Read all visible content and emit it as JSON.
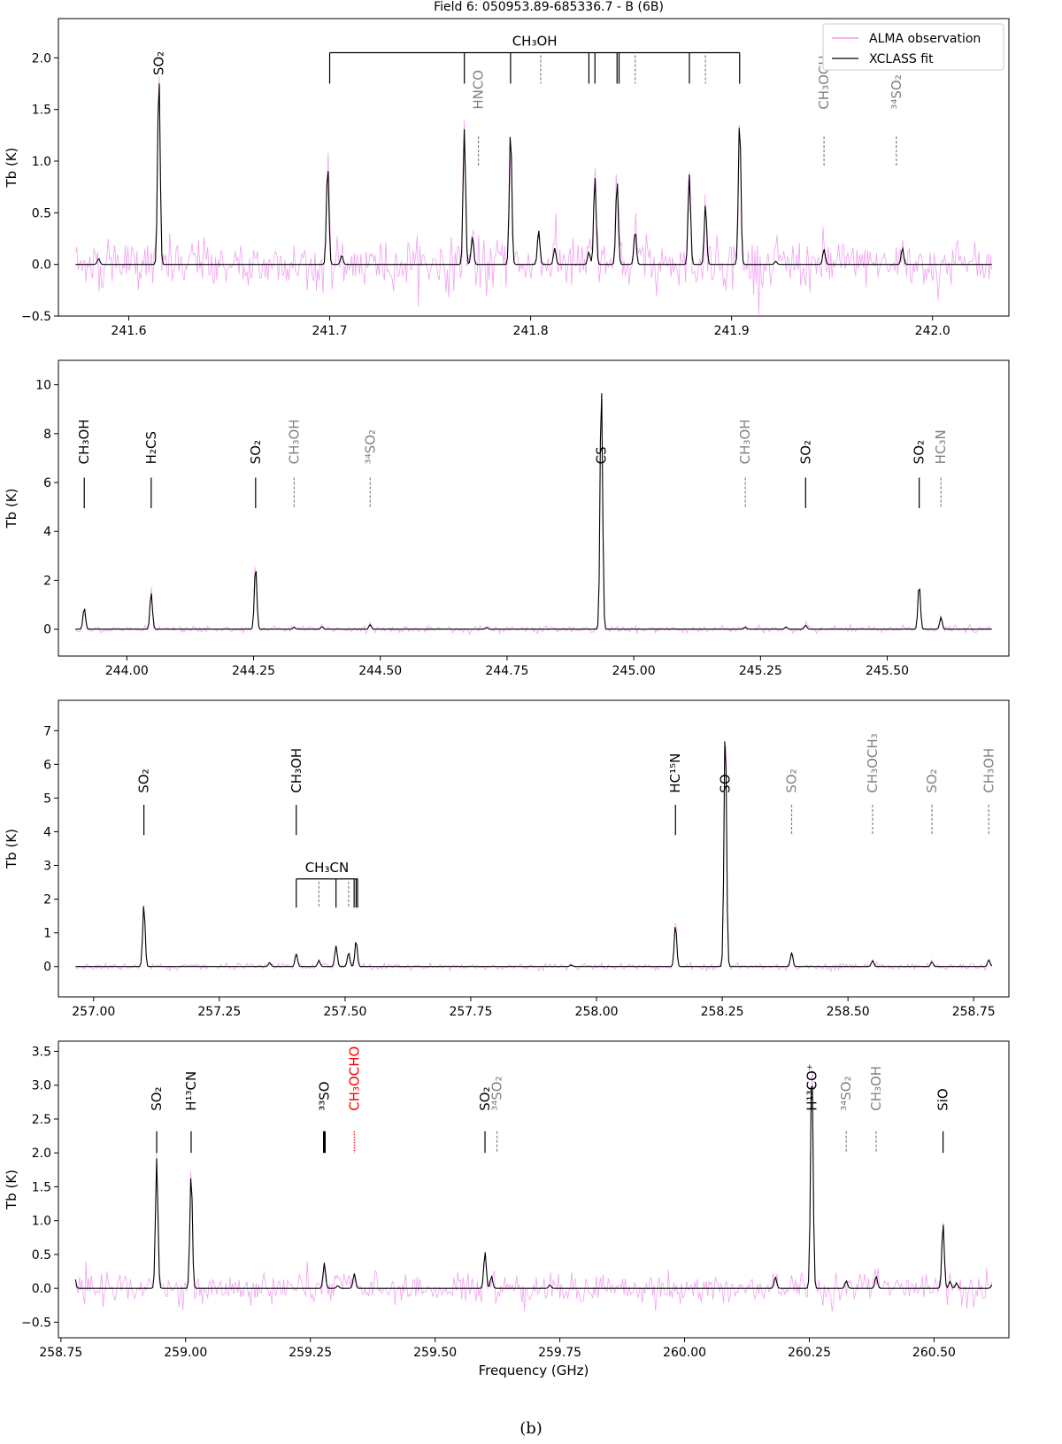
{
  "figure": {
    "title": "Field 6: 050953.89-685336.7 - B (6B)",
    "caption": "(b)",
    "legend": {
      "observation": "ALMA observation",
      "fit": "XCLASS fit"
    },
    "colors": {
      "observation": "#ee82ee",
      "fit": "#000000",
      "identified": "#000000",
      "tentative": "#808080",
      "highlight": "#ff0000"
    }
  },
  "chart_data": [
    {
      "type": "line",
      "panel": 1,
      "ylabel": "Tb (K)",
      "xlabel": "",
      "xlim": [
        241.565,
        242.038
      ],
      "ylim": [
        -0.5,
        2.38
      ],
      "xticks": [
        "241.6",
        "241.7",
        "241.8",
        "241.9",
        "242.0"
      ],
      "yticks": [
        "−0.5",
        "0.0",
        "0.5",
        "1.0",
        "1.5",
        "2.0"
      ],
      "legend_position": "top-right",
      "noise": 0.22,
      "fit_peaks": [
        {
          "x": 241.585,
          "h": 0.06
        },
        {
          "x": 241.615,
          "h": 1.85
        },
        {
          "x": 241.699,
          "h": 0.97
        },
        {
          "x": 241.706,
          "h": 0.09
        },
        {
          "x": 241.767,
          "h": 1.31
        },
        {
          "x": 241.771,
          "h": 0.27
        },
        {
          "x": 241.79,
          "h": 1.32
        },
        {
          "x": 241.804,
          "h": 0.33
        },
        {
          "x": 241.812,
          "h": 0.16
        },
        {
          "x": 241.829,
          "h": 0.12
        },
        {
          "x": 241.832,
          "h": 0.85
        },
        {
          "x": 241.843,
          "h": 0.82
        },
        {
          "x": 241.852,
          "h": 0.33
        },
        {
          "x": 241.879,
          "h": 0.87
        },
        {
          "x": 241.887,
          "h": 0.59
        },
        {
          "x": 241.904,
          "h": 1.42
        },
        {
          "x": 241.922,
          "h": 0.03
        },
        {
          "x": 241.946,
          "h": 0.15
        },
        {
          "x": 241.985,
          "h": 0.16
        }
      ],
      "labels": [
        {
          "text": "SO₂",
          "x": 241.615,
          "y_text": 1.83,
          "tick": [],
          "style": "solid"
        },
        {
          "text": "HNCO",
          "x": 241.774,
          "y_text": 1.5,
          "tick": [
            1.24,
            0.95
          ],
          "style": "tentative"
        },
        {
          "text": "CH₃OCH₃",
          "x": 241.946,
          "y_text": 1.5,
          "tick": [
            1.24,
            0.95
          ],
          "style": "tentative"
        },
        {
          "text": "³⁴SO₂",
          "x": 241.982,
          "y_text": 1.5,
          "tick": [
            1.24,
            0.95
          ],
          "style": "tentative"
        }
      ],
      "bracket": {
        "text": "CH₃OH",
        "y_top": 2.05,
        "y_bottom": 1.75,
        "x_start": 241.7,
        "x_end": 241.904,
        "solid": [
          241.767,
          241.79,
          241.829,
          241.832,
          241.843,
          241.844,
          241.879
        ],
        "dashed": [
          241.805,
          241.852,
          241.887
        ]
      }
    },
    {
      "type": "line",
      "panel": 2,
      "ylabel": "Tb (K)",
      "xlabel": "",
      "xlim": [
        243.865,
        245.74
      ],
      "ylim": [
        -1.1,
        11.0
      ],
      "xticks": [
        "244.00",
        "244.25",
        "244.50",
        "244.75",
        "245.00",
        "245.25",
        "245.50",
        "245.75"
      ],
      "yticks": [
        "0",
        "2",
        "4",
        "6",
        "8",
        "10"
      ],
      "noise": 0.12,
      "fit_peaks": [
        {
          "x": 243.916,
          "h": 0.88
        },
        {
          "x": 244.048,
          "h": 1.49
        },
        {
          "x": 244.254,
          "h": 2.62
        },
        {
          "x": 244.33,
          "h": 0.08
        },
        {
          "x": 244.385,
          "h": 0.1
        },
        {
          "x": 244.48,
          "h": 0.18
        },
        {
          "x": 244.71,
          "h": 0.06
        },
        {
          "x": 244.936,
          "h": 10.15
        },
        {
          "x": 245.22,
          "h": 0.08
        },
        {
          "x": 245.3,
          "h": 0.09
        },
        {
          "x": 245.339,
          "h": 0.16
        },
        {
          "x": 245.563,
          "h": 1.85
        },
        {
          "x": 245.606,
          "h": 0.48
        }
      ],
      "labels": [
        {
          "text": "CH₃OH",
          "x": 243.916,
          "y_text": 6.75,
          "tick": [
            6.2,
            4.95
          ],
          "style": "solid"
        },
        {
          "text": "H₂CS",
          "x": 244.048,
          "y_text": 6.75,
          "tick": [
            6.2,
            4.95
          ],
          "style": "solid"
        },
        {
          "text": "SO₂",
          "x": 244.254,
          "y_text": 6.75,
          "tick": [
            6.2,
            4.95
          ],
          "style": "solid"
        },
        {
          "text": "CH₃OH",
          "x": 244.33,
          "y_text": 6.75,
          "tick": [
            6.2,
            4.95
          ],
          "style": "tentative"
        },
        {
          "text": "³⁴SO₂",
          "x": 244.48,
          "y_text": 6.75,
          "tick": [
            6.2,
            4.95
          ],
          "style": "tentative"
        },
        {
          "text": "CS",
          "x": 244.936,
          "y_text": 6.75,
          "tick": [],
          "style": "solid"
        },
        {
          "text": "CH₃OH",
          "x": 245.22,
          "y_text": 6.75,
          "tick": [
            6.2,
            4.95
          ],
          "style": "tentative"
        },
        {
          "text": "SO₂",
          "x": 245.339,
          "y_text": 6.75,
          "tick": [
            6.2,
            4.95
          ],
          "style": "solid"
        },
        {
          "text": "SO₂",
          "x": 245.563,
          "y_text": 6.75,
          "tick": [
            6.2,
            4.95
          ],
          "style": "solid"
        },
        {
          "text": "HC₃N",
          "x": 245.606,
          "y_text": 6.75,
          "tick": [
            6.2,
            4.95
          ],
          "style": "tentative"
        }
      ]
    },
    {
      "type": "line",
      "panel": 3,
      "ylabel": "Tb (K)",
      "xlabel": "",
      "xlim": [
        256.93,
        258.82
      ],
      "ylim": [
        -0.9,
        7.9
      ],
      "xticks": [
        "257.00",
        "257.25",
        "257.50",
        "257.75",
        "258.00",
        "258.25",
        "258.50",
        "258.75"
      ],
      "yticks": [
        "0",
        "1",
        "2",
        "3",
        "4",
        "5",
        "6",
        "7"
      ],
      "noise": 0.09,
      "fit_peaks": [
        {
          "x": 257.1,
          "h": 1.85
        },
        {
          "x": 257.35,
          "h": 0.12
        },
        {
          "x": 257.403,
          "h": 0.38
        },
        {
          "x": 257.448,
          "h": 0.18
        },
        {
          "x": 257.482,
          "h": 0.62
        },
        {
          "x": 257.507,
          "h": 0.42
        },
        {
          "x": 257.522,
          "h": 0.78
        },
        {
          "x": 257.95,
          "h": 0.05
        },
        {
          "x": 258.157,
          "h": 1.25
        },
        {
          "x": 258.256,
          "h": 7.25
        },
        {
          "x": 258.388,
          "h": 0.42
        },
        {
          "x": 258.549,
          "h": 0.18
        },
        {
          "x": 258.667,
          "h": 0.14
        },
        {
          "x": 258.78,
          "h": 0.2
        }
      ],
      "labels": [
        {
          "text": "SO₂",
          "x": 257.1,
          "y_text": 5.15,
          "tick": [
            4.8,
            3.9
          ],
          "style": "solid"
        },
        {
          "text": "CH₃OH",
          "x": 257.403,
          "y_text": 5.15,
          "tick": [
            4.8,
            3.9
          ],
          "style": "solid"
        },
        {
          "text": "HC¹⁵N",
          "x": 258.157,
          "y_text": 5.15,
          "tick": [
            4.8,
            3.9
          ],
          "style": "solid"
        },
        {
          "text": "SO",
          "x": 258.256,
          "y_text": 5.15,
          "tick": [],
          "style": "solid"
        },
        {
          "text": "SO₂",
          "x": 258.388,
          "y_text": 5.15,
          "tick": [
            4.8,
            3.9
          ],
          "style": "tentative"
        },
        {
          "text": "CH₃OCH₃",
          "x": 258.549,
          "y_text": 5.15,
          "tick": [
            4.8,
            3.9
          ],
          "style": "tentative"
        },
        {
          "text": "SO₂",
          "x": 258.667,
          "y_text": 5.15,
          "tick": [
            4.8,
            3.9
          ],
          "style": "tentative"
        },
        {
          "text": "CH₃OH",
          "x": 258.78,
          "y_text": 5.15,
          "tick": [
            4.8,
            3.9
          ],
          "style": "tentative"
        }
      ],
      "bracket": {
        "text": "CH₃CN",
        "y_top": 2.6,
        "y_bottom": 1.75,
        "x_start": 257.403,
        "x_end": 257.525,
        "solid": [
          257.482,
          257.518,
          257.522
        ],
        "dashed": [
          257.448,
          257.507
        ]
      }
    },
    {
      "type": "line",
      "panel": 4,
      "ylabel": "Tb (K)",
      "xlabel": "Frequency (GHz)",
      "xlim": [
        258.745,
        260.65
      ],
      "ylim": [
        -0.73,
        3.65
      ],
      "xticks": [
        "258.75",
        "259.00",
        "259.25",
        "259.50",
        "259.75",
        "260.00",
        "260.25",
        "260.50"
      ],
      "yticks": [
        "−0.5",
        "0.0",
        "0.5",
        "1.0",
        "1.5",
        "2.0",
        "2.5",
        "3.0",
        "3.5"
      ],
      "noise": 0.2,
      "fit_peaks": [
        {
          "x": 258.777,
          "h": 0.2
        },
        {
          "x": 258.942,
          "h": 1.92
        },
        {
          "x": 259.011,
          "h": 1.72
        },
        {
          "x": 259.278,
          "h": 0.38
        },
        {
          "x": 259.305,
          "h": 0.04
        },
        {
          "x": 259.338,
          "h": 0.22
        },
        {
          "x": 259.6,
          "h": 0.54
        },
        {
          "x": 259.613,
          "h": 0.18
        },
        {
          "x": 259.73,
          "h": 0.05
        },
        {
          "x": 260.182,
          "h": 0.17
        },
        {
          "x": 260.255,
          "h": 3.42
        },
        {
          "x": 260.324,
          "h": 0.11
        },
        {
          "x": 260.384,
          "h": 0.18
        },
        {
          "x": 260.518,
          "h": 0.97
        },
        {
          "x": 260.532,
          "h": 0.1
        },
        {
          "x": 260.545,
          "h": 0.08
        },
        {
          "x": 260.617,
          "h": 0.06
        }
      ],
      "labels": [
        {
          "text": "SO₂",
          "x": 258.942,
          "y_text": 2.62,
          "tick": [
            2.32,
            2.0
          ],
          "style": "solid"
        },
        {
          "text": "H¹³CN",
          "x": 259.011,
          "y_text": 2.62,
          "tick": [
            2.32,
            2.0
          ],
          "style": "solid"
        },
        {
          "text": "³³SO",
          "x": 259.278,
          "y_text": 2.62,
          "tick": [
            2.32,
            2.0
          ],
          "style": "bold"
        },
        {
          "text": "CH₃OCHO",
          "x": 259.338,
          "y_text": 2.62,
          "tick": [
            2.32,
            2.0
          ],
          "style": "highlight"
        },
        {
          "text": "SO₂",
          "x": 259.6,
          "y_text": 2.62,
          "tick": [
            2.32,
            2.0
          ],
          "style": "solid"
        },
        {
          "text": "³⁴SO₂",
          "x": 259.624,
          "y_text": 2.62,
          "tick": [
            2.32,
            2.0
          ],
          "style": "tentative"
        },
        {
          "text": "H¹³CO⁺",
          "x": 260.255,
          "y_text": 2.62,
          "tick": [],
          "style": "solid"
        },
        {
          "text": "³⁴SO₂",
          "x": 260.324,
          "y_text": 2.62,
          "tick": [
            2.32,
            2.0
          ],
          "style": "tentative"
        },
        {
          "text": "CH₃OH",
          "x": 260.384,
          "y_text": 2.62,
          "tick": [
            2.32,
            2.0
          ],
          "style": "tentative"
        },
        {
          "text": "SiO",
          "x": 260.518,
          "y_text": 2.62,
          "tick": [
            2.32,
            2.0
          ],
          "style": "solid"
        }
      ]
    }
  ]
}
